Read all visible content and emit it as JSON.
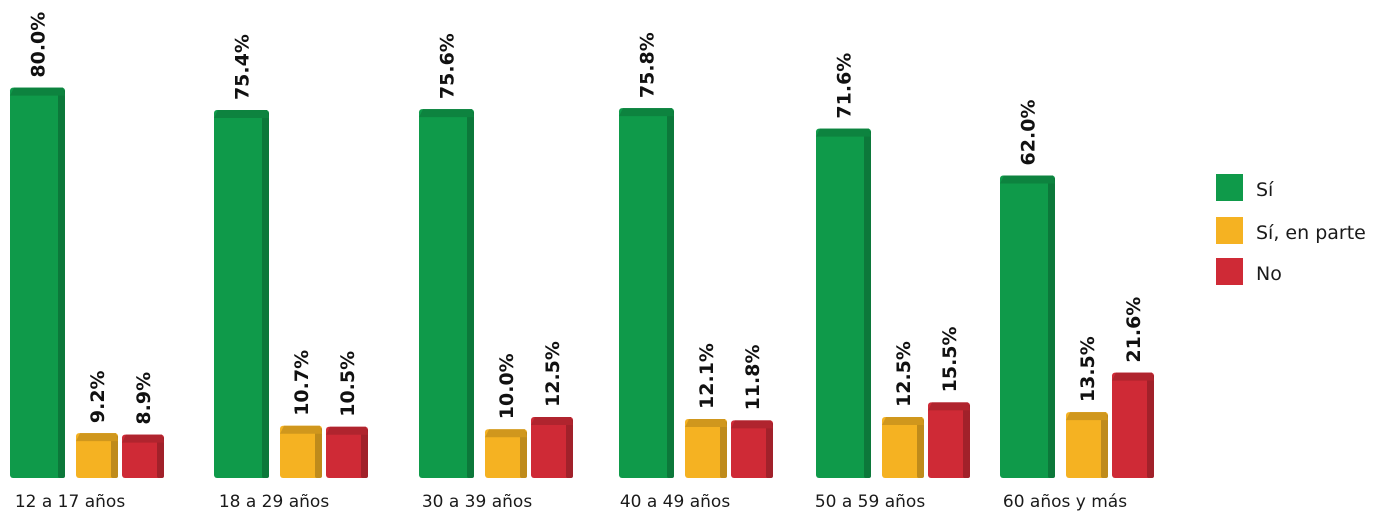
{
  "chart_data": {
    "type": "bar",
    "title": "",
    "xlabel": "",
    "ylabel": "",
    "ylim": [
      0,
      100
    ],
    "grid": false,
    "legend_position": "right",
    "categories": [
      "12 a 17 años",
      "18 a 29 años",
      "30 a 39 años",
      "40 a 49 años",
      "50 a 59 años",
      "60 años  y más"
    ],
    "series": [
      {
        "name": "Sí",
        "color": "#0f9a4a",
        "values": [
          80.0,
          75.4,
          75.6,
          75.8,
          71.6,
          62.0
        ],
        "labels": [
          "80.0%",
          "75.4%",
          "75.6%",
          "75.8%",
          "71.6%",
          "62.0%"
        ]
      },
      {
        "name": "Sí, en parte",
        "color": "#f5b222",
        "values": [
          9.2,
          10.7,
          10.0,
          12.1,
          12.5,
          13.5
        ],
        "labels": [
          "9.2%",
          "10.7%",
          "10.0%",
          "12.1%",
          "12.5%",
          "13.5%"
        ]
      },
      {
        "name": "No",
        "color": "#cf2a36",
        "values": [
          8.9,
          10.5,
          12.5,
          11.8,
          15.5,
          21.6
        ],
        "labels": [
          "8.9%",
          "10.5%",
          "12.5%",
          "11.8%",
          "15.5%",
          "21.6%"
        ]
      }
    ]
  }
}
